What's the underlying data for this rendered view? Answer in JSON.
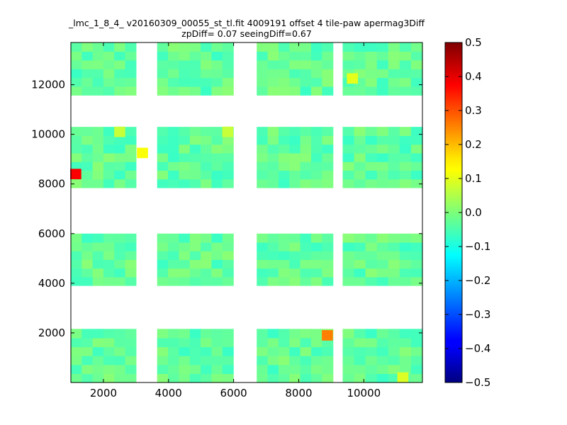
{
  "chart_data": {
    "type": "heatmap",
    "title": "_lmc_1_8_4_ v20160309_00055_st_tl.fit 4009191 offset 4 tile-paw apermag3Diff",
    "subtitle": "zpDiff= 0.07 seeingDiff=0.67",
    "xlabel": "",
    "ylabel": "",
    "xlim": [
      1000,
      11800
    ],
    "ylim": [
      0,
      13700
    ],
    "xticks": [
      "2000",
      "4000",
      "6000",
      "8000",
      "10000"
    ],
    "yticks": [
      "2000",
      "4000",
      "6000",
      "8000",
      "10000",
      "12000"
    ],
    "colorbar": {
      "range": [
        -0.5,
        0.5
      ],
      "ticks": [
        "0.5",
        "0.4",
        "0.3",
        "0.2",
        "0.1",
        "0.0",
        "−0.1",
        "−0.2",
        "−0.3",
        "−0.4",
        "−0.5"
      ],
      "colormap": "jet"
    },
    "grid": false,
    "detectors": {
      "columns": [
        {
          "x0": 1000,
          "x1": 3000,
          "nx": 6
        },
        {
          "x0": 3650,
          "x1": 5990,
          "nx": 7
        },
        {
          "x0": 6710,
          "x1": 9050,
          "nx": 7
        },
        {
          "x0": 9350,
          "x1": 11800,
          "nx": 7
        }
      ],
      "rows": [
        {
          "y0": 0,
          "y1": 2160,
          "ny": 6
        },
        {
          "y0": 3910,
          "y1": 6000,
          "ny": 6
        },
        {
          "y0": 7850,
          "y1": 10300,
          "ny": 7
        },
        {
          "y0": 11580,
          "y1": 13700,
          "ny": 6
        }
      ],
      "base_value": -0.03
    },
    "highlights": [
      {
        "x": 1150,
        "y": 8400,
        "value": 0.38
      },
      {
        "x": 8880,
        "y": 1900,
        "value": 0.25
      },
      {
        "x": 3200,
        "y": 9250,
        "value": 0.12
      },
      {
        "x": 9650,
        "y": 12250,
        "value": 0.1
      },
      {
        "x": 11200,
        "y": 200,
        "value": 0.09
      },
      {
        "x": 5820,
        "y": 10100,
        "value": 0.07
      },
      {
        "x": 2500,
        "y": 10100,
        "value": 0.07
      }
    ]
  }
}
